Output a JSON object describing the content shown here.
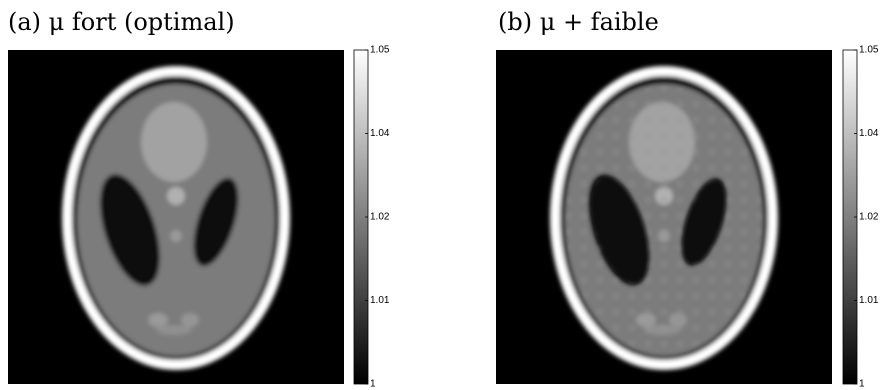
{
  "panels": [
    {
      "title": "(a) μ fort (optimal)",
      "colorbar": {
        "ticks": [
          "1.05",
          "1.04",
          "1.02",
          "1.01",
          "1"
        ]
      }
    },
    {
      "title": "(b) μ + faible",
      "colorbar": {
        "ticks": [
          "1.05",
          "1.04",
          "1.02",
          "1.01",
          "1"
        ]
      }
    }
  ]
}
